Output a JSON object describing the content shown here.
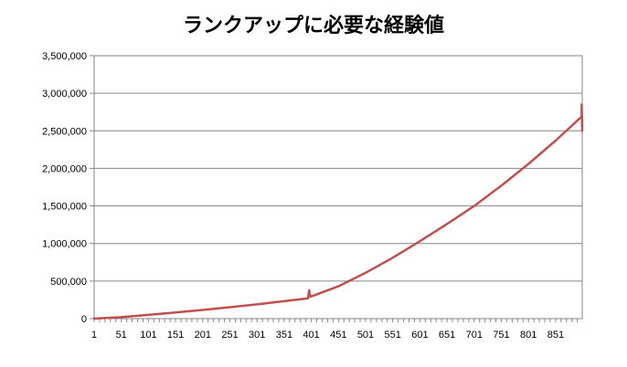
{
  "chart_data": {
    "type": "line",
    "title": "ランクアップに必要な経験値",
    "xlabel": "",
    "ylabel": "",
    "x_tick_labels": [
      "1",
      "51",
      "101",
      "151",
      "201",
      "251",
      "301",
      "351",
      "401",
      "451",
      "501",
      "551",
      "601",
      "651",
      "701",
      "751",
      "801",
      "851"
    ],
    "x_tick_values": [
      1,
      51,
      101,
      151,
      201,
      251,
      301,
      351,
      401,
      451,
      501,
      551,
      601,
      651,
      701,
      751,
      801,
      851
    ],
    "xlim": [
      1,
      900
    ],
    "y_tick_labels": [
      "0",
      "500,000",
      "1,000,000",
      "1,500,000",
      "2,000,000",
      "2,500,000",
      "3,000,000",
      "3,500,000"
    ],
    "y_tick_values": [
      0,
      500000,
      1000000,
      1500000,
      2000000,
      2500000,
      3000000,
      3500000
    ],
    "ylim": [
      0,
      3500000
    ],
    "grid": "horizontal",
    "legend": "none",
    "series": [
      {
        "color": "#c0504d",
        "x": [
          1,
          51,
          101,
          151,
          201,
          251,
          301,
          351,
          395,
          397,
          399,
          400,
          401,
          451,
          501,
          551,
          601,
          651,
          701,
          751,
          801,
          851,
          899,
          899,
          900
        ],
        "y": [
          0,
          20000,
          50000,
          82000,
          115000,
          152000,
          190000,
          232000,
          270000,
          375000,
          300000,
          290000,
          295000,
          430000,
          610000,
          810000,
          1030000,
          1260000,
          1500000,
          1770000,
          2060000,
          2370000,
          2690000,
          2850000,
          2500000
        ]
      }
    ]
  }
}
